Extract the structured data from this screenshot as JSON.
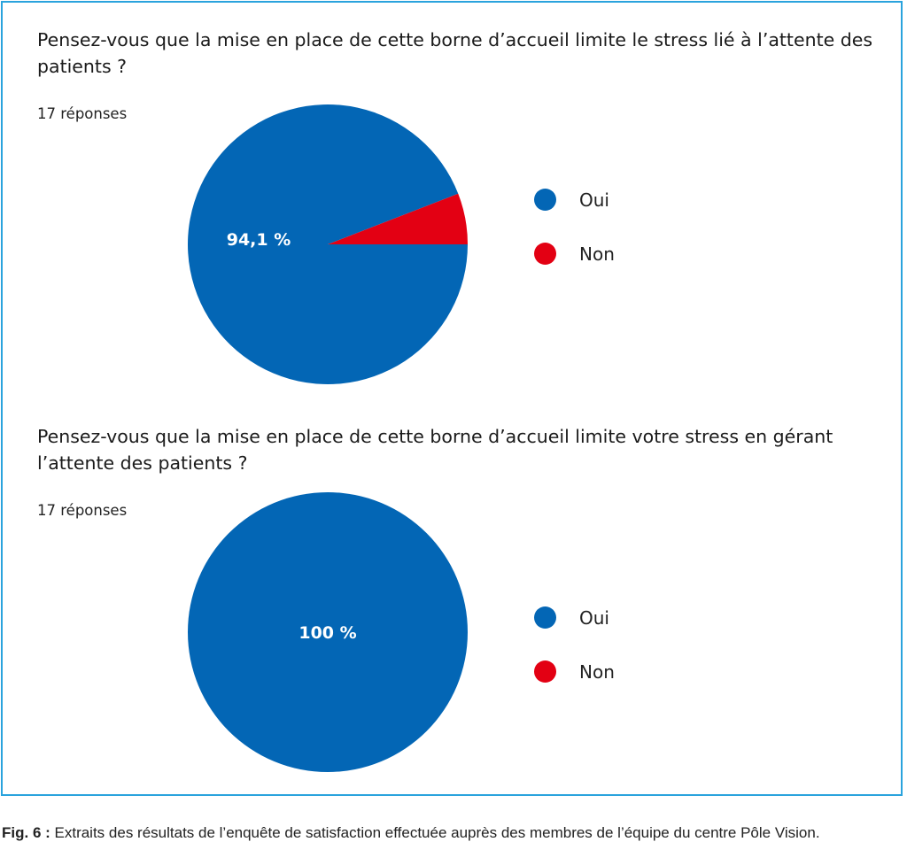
{
  "chart_data": [
    {
      "type": "pie",
      "title": "Pensez-vous que la mise en place de cette borne d’accueil limite le stress lié à l’attente des patients ?",
      "subtitle": "17 réponses",
      "categories": [
        "Oui",
        "Non"
      ],
      "values": [
        94.1,
        5.9
      ],
      "colors": [
        "#0366b5",
        "#e30013"
      ],
      "data_labels": [
        "94,1 %",
        ""
      ],
      "legend": "right"
    },
    {
      "type": "pie",
      "title": "Pensez-vous que la mise en place de cette borne d’accueil limite votre stress en gérant l’attente des patients ?",
      "subtitle": "17 réponses",
      "categories": [
        "Oui",
        "Non"
      ],
      "values": [
        100,
        0
      ],
      "colors": [
        "#0366b5",
        "#e30013"
      ],
      "data_labels": [
        "100 %",
        ""
      ],
      "legend": "right"
    }
  ],
  "caption": {
    "label": "Fig. 6 :",
    "text": " Extraits des résultats de l’enquête de satisfaction effectuée auprès des membres de l’équipe du centre Pôle Vision."
  }
}
